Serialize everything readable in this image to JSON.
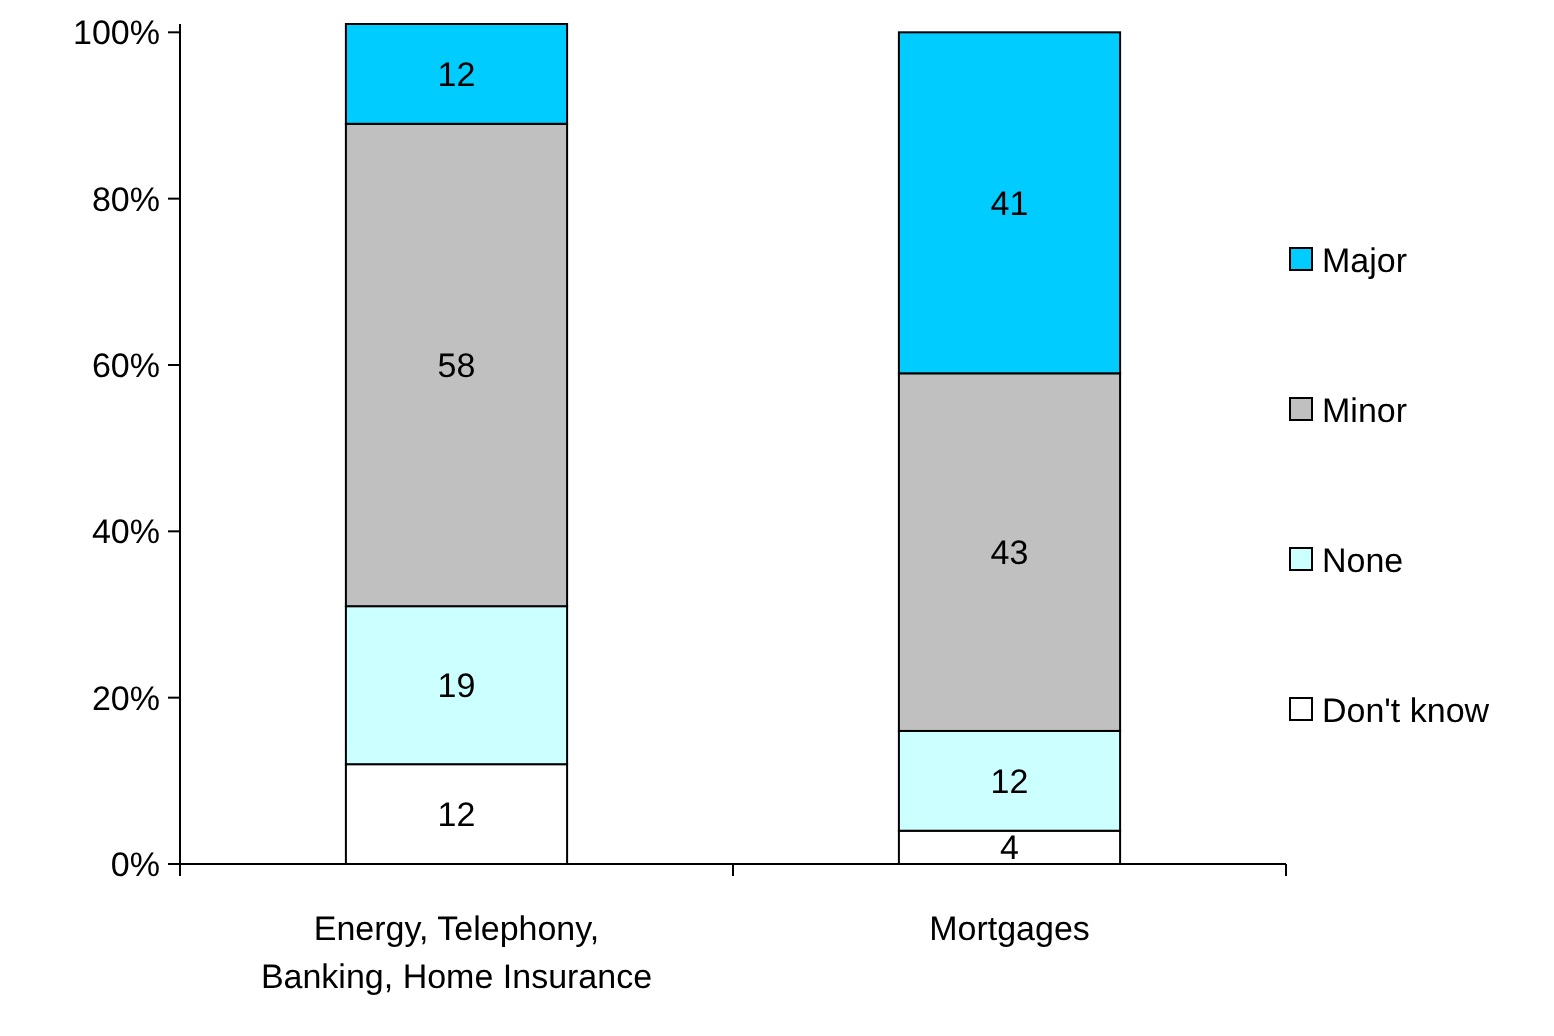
{
  "chart_data": {
    "type": "bar",
    "stacked": true,
    "categories": [
      "Energy, Telephony, Banking, Home Insurance",
      "Mortgages"
    ],
    "series": [
      {
        "name": "Don't know",
        "color": "#ffffff",
        "values": [
          12,
          4
        ]
      },
      {
        "name": "None",
        "color": "#ccffff",
        "values": [
          19,
          12
        ]
      },
      {
        "name": "Minor",
        "color": "#c0c0c0",
        "values": [
          58,
          43
        ]
      },
      {
        "name": "Major",
        "color": "#00ccff",
        "values": [
          12,
          41
        ]
      }
    ],
    "ylim": [
      0,
      101
    ],
    "yticks": [
      {
        "value": 0,
        "label": "0%"
      },
      {
        "value": 20,
        "label": "20%"
      },
      {
        "value": 40,
        "label": "40%"
      },
      {
        "value": 60,
        "label": "60%"
      },
      {
        "value": 80,
        "label": "80%"
      },
      {
        "value": 100,
        "label": "100%"
      }
    ],
    "data_labels": true,
    "legend": "right",
    "grid": false
  }
}
